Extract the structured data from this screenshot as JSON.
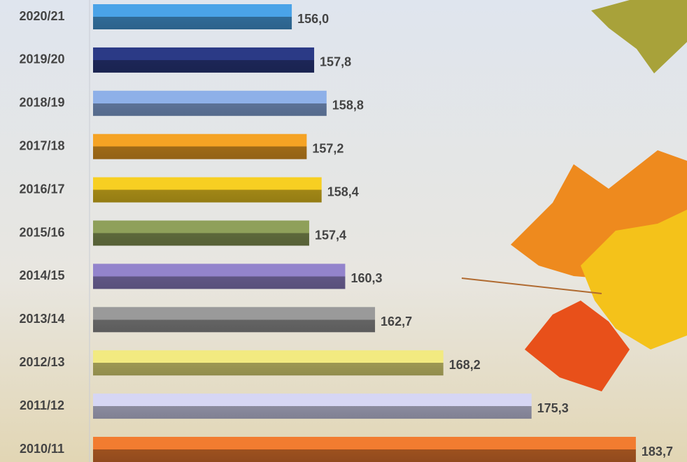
{
  "chart_data": {
    "type": "hbar",
    "categories": [
      "2020/21",
      "2019/20",
      "2018/19",
      "2017/18",
      "2016/17",
      "2015/16",
      "2014/15",
      "2013/14",
      "2012/13",
      "2011/12",
      "2010/11"
    ],
    "values": [
      156.0,
      157.8,
      158.8,
      157.2,
      158.4,
      157.4,
      160.3,
      162.7,
      168.2,
      175.3,
      183.7
    ],
    "value_labels": [
      "156,0",
      "157,8",
      "158,8",
      "157,2",
      "158,4",
      "157,4",
      "160,3",
      "162,7",
      "168,2",
      "175,3",
      "183,7"
    ],
    "colors": [
      "#4aa3e8",
      "#2b3a86",
      "#8eb0e8",
      "#f5a324",
      "#f7cf22",
      "#8fa05a",
      "#9384cc",
      "#9a9a9a",
      "#f2ea80",
      "#d6d6f4",
      "#f27c30"
    ],
    "xlim": [
      140,
      185
    ]
  }
}
